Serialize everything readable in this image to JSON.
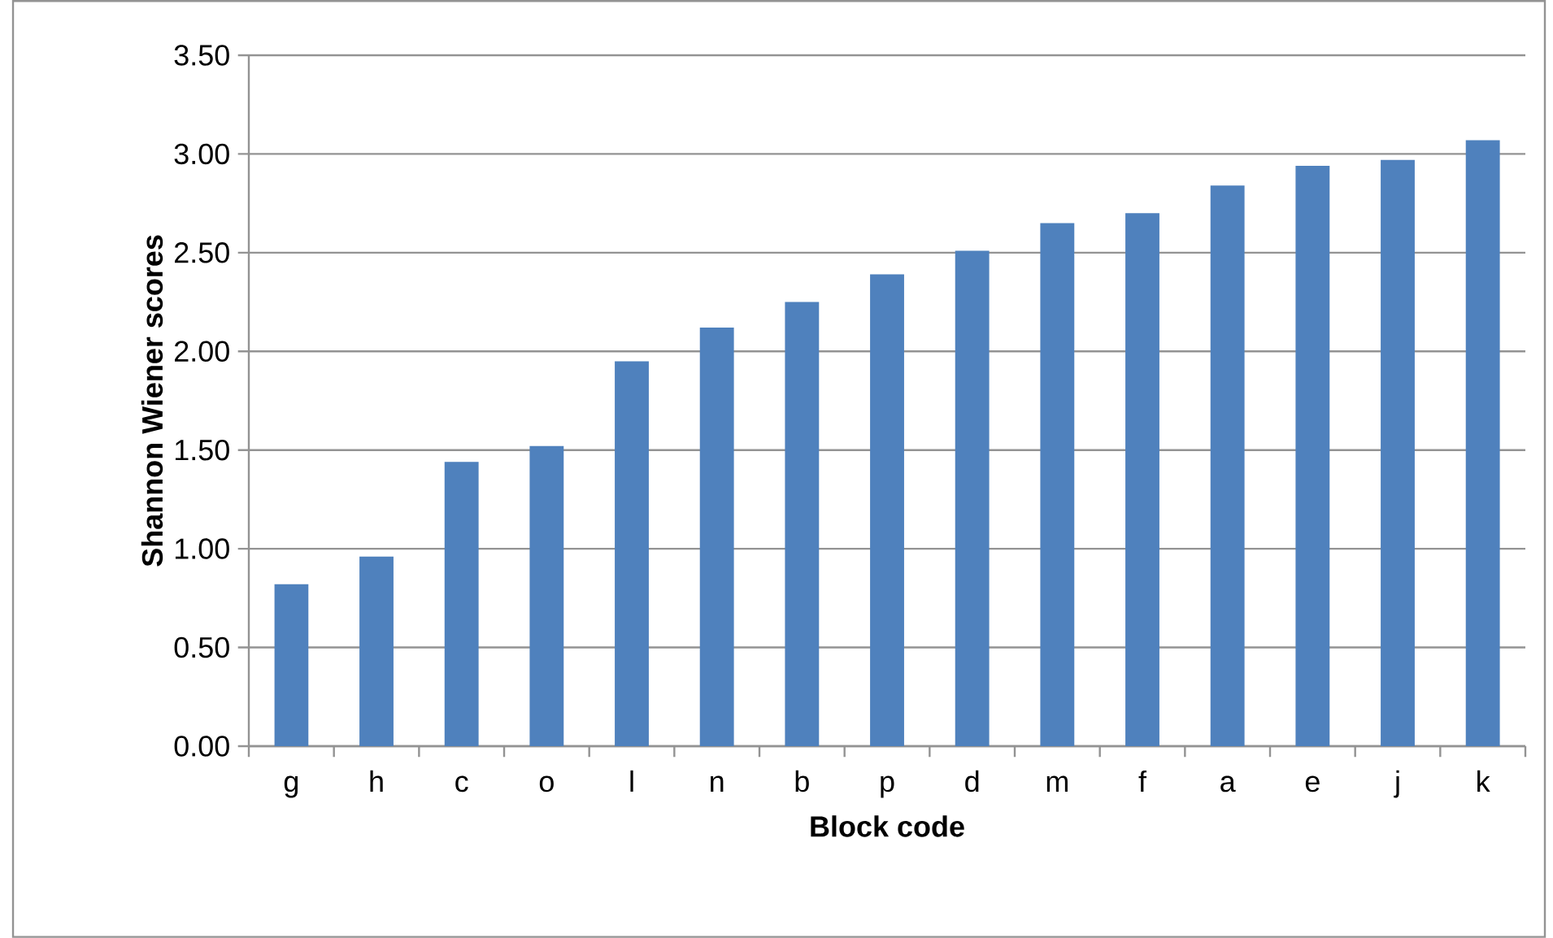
{
  "chart_data": {
    "type": "bar",
    "xlabel": "Block code",
    "ylabel": "Shannon Wiener scores",
    "categories": [
      "g",
      "h",
      "c",
      "o",
      "l",
      "n",
      "b",
      "p",
      "d",
      "m",
      "f",
      "a",
      "e",
      "j",
      "k"
    ],
    "values": [
      0.82,
      0.96,
      1.44,
      1.52,
      1.95,
      2.12,
      2.25,
      2.39,
      2.51,
      2.65,
      2.7,
      2.84,
      2.94,
      2.97,
      3.07
    ],
    "color": "#4f81bd",
    "ylim": [
      0,
      3.5
    ],
    "yticks": [
      {
        "value": 0,
        "label": "0.00"
      },
      {
        "value": 0.5,
        "label": "0.50"
      },
      {
        "value": 1,
        "label": "1.00"
      },
      {
        "value": 1.5,
        "label": "1.50"
      },
      {
        "value": 2,
        "label": "2.00"
      },
      {
        "value": 2.5,
        "label": "2.50"
      },
      {
        "value": 3,
        "label": "3.00"
      },
      {
        "value": 3.5,
        "label": "3.50"
      }
    ],
    "grid": "y"
  }
}
